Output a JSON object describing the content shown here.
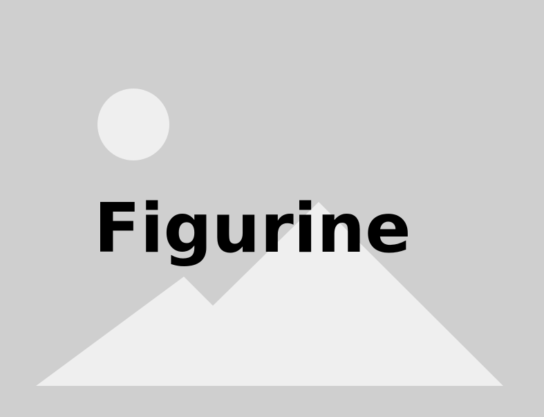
{
  "image_placeholder": {
    "caption": "Figurine",
    "icon": "image-placeholder-icon",
    "colors": {
      "background": "#cfcfcf",
      "shapes": "#efefef",
      "caption": "#000000"
    }
  }
}
